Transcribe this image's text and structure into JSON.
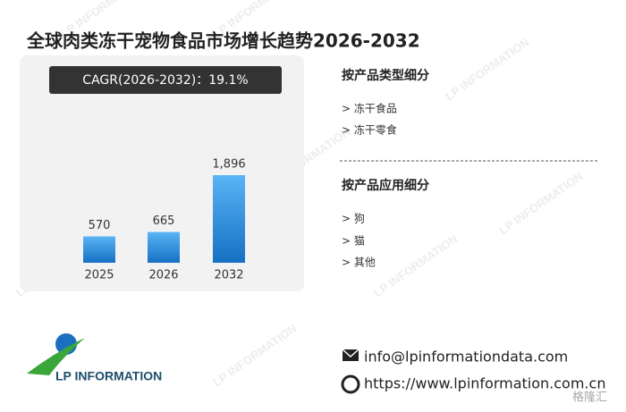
{
  "chart_data": {
    "type": "bar",
    "title": "全球肉类冻干宠物食品市场增长趋势2026-2032",
    "annotation": "CAGR(2026-2032)：19.1%",
    "categories": [
      "2025",
      "2026",
      "2032"
    ],
    "values": [
      570,
      665,
      1896
    ],
    "value_labels": [
      "570",
      "665",
      "1,896"
    ],
    "color": "#1f7fd6"
  },
  "segments": [
    {
      "title": "按产品类型细分",
      "items": [
        "> 冻干食品",
        "> 冻干零食"
      ]
    },
    {
      "title": "按产品应用细分",
      "items": [
        "> 狗",
        "> 猫",
        "> 其他"
      ]
    }
  ],
  "contact": {
    "email": "info@lpinformationdata.com",
    "website": "https://www.lpinformation.com.cn"
  },
  "logo": "LP INFORMATION",
  "watermark": "LP INFORMATION",
  "corner_mark": "格隆汇"
}
